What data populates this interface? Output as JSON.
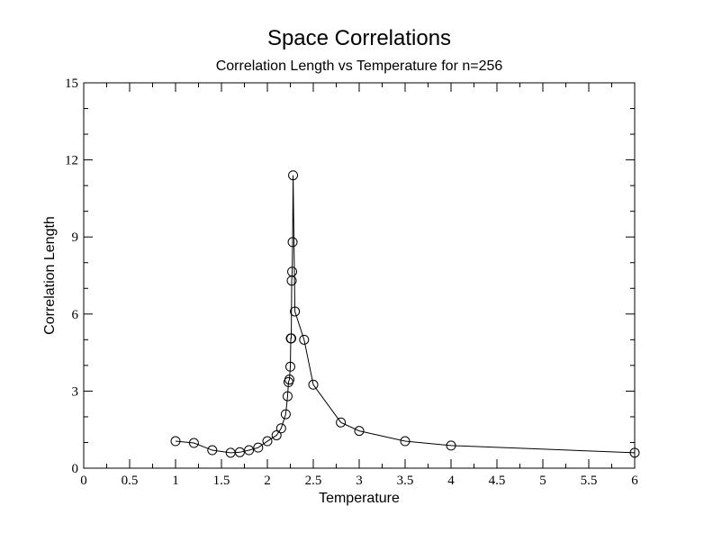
{
  "chart_data": {
    "type": "line",
    "title": "Space Correlations",
    "subtitle": "Correlation Length vs Temperature for n=256",
    "xlabel": "Temperature",
    "ylabel": "Correlation Length",
    "xlim": [
      0,
      6
    ],
    "ylim": [
      0,
      15
    ],
    "x_ticks": [
      "0",
      "0.5",
      "1",
      "1.5",
      "2",
      "2.5",
      "3",
      "3.5",
      "4",
      "4.5",
      "5",
      "5.5",
      "6"
    ],
    "y_ticks": [
      "0",
      "3",
      "6",
      "9",
      "12",
      "15"
    ],
    "grid": false,
    "marker": "circle",
    "series": [
      {
        "x": [
          1.0,
          1.2,
          1.4,
          1.6,
          1.7,
          1.8,
          1.9,
          2.0,
          2.1,
          2.15,
          2.2,
          2.22,
          2.23,
          2.24,
          2.25,
          2.255,
          2.26,
          2.265,
          2.27,
          2.275,
          2.28,
          2.3,
          2.4,
          2.5,
          2.8,
          3.0,
          3.5,
          4.0,
          6.0
        ],
        "y": [
          1.05,
          0.98,
          0.7,
          0.6,
          0.62,
          0.7,
          0.8,
          1.05,
          1.28,
          1.55,
          2.1,
          2.8,
          3.35,
          3.45,
          3.95,
          5.05,
          5.05,
          7.3,
          7.65,
          8.8,
          11.4,
          6.1,
          5.0,
          3.25,
          1.78,
          1.45,
          1.05,
          0.88,
          0.6
        ]
      }
    ]
  }
}
